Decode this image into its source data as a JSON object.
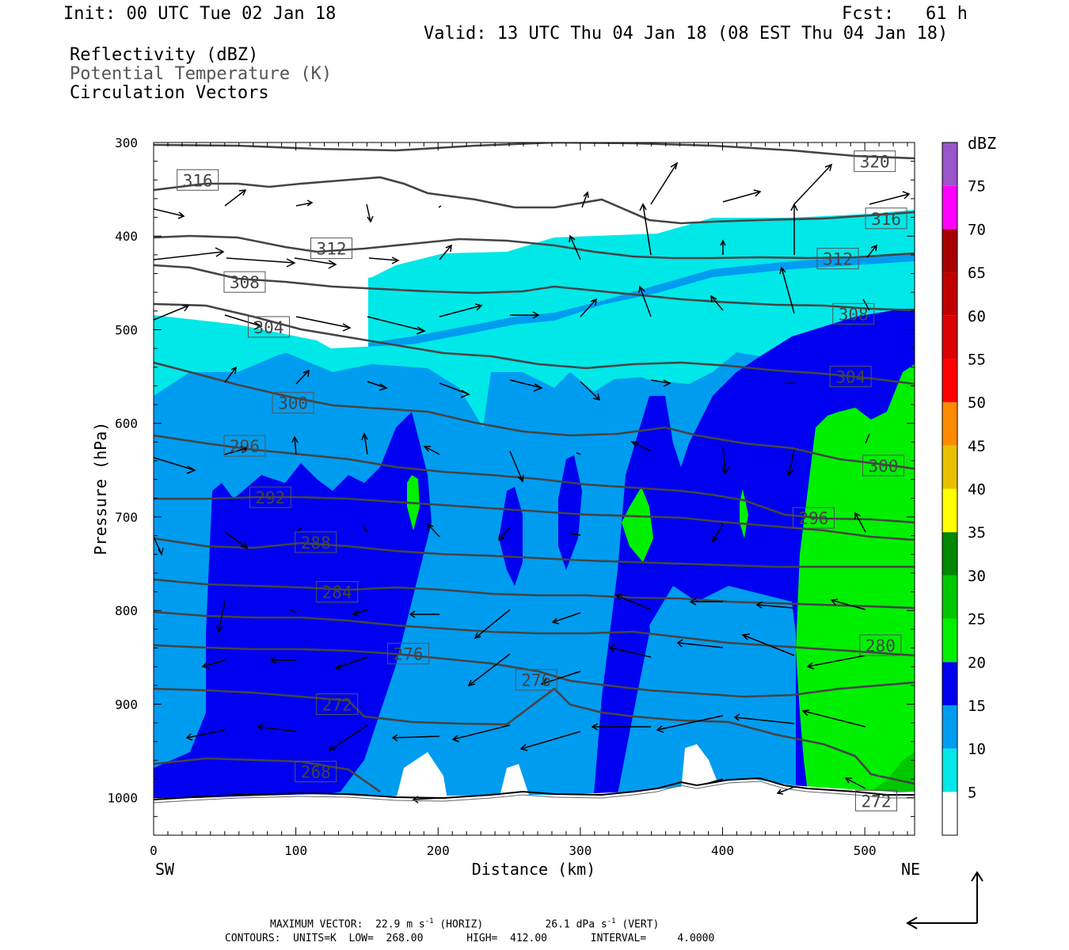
{
  "header": {
    "init": "Init: 00 UTC Tue 02 Jan 18",
    "fcst": "Fcst:   61 h",
    "valid": "Valid: 13 UTC Thu 04 Jan 18 (08 EST Thu 04 Jan 18)",
    "fields": [
      "Reflectivity (dBZ)",
      "Potential Temperature (K)",
      "Circulation Vectors"
    ]
  },
  "footer": {
    "max_vector_prefix": "MAXIMUM VECTOR:",
    "max_vector_horiz_value": "22.9 m s",
    "max_vector_horiz_units": "(HORIZ)",
    "max_vector_vert_value": "26.1 dPa s",
    "max_vector_vert_units": "(VERT)",
    "exponent": "-1",
    "contours": "CONTOURS:  UNITS=K  LOW=  268.00       HIGH=  412.00       INTERVAL=     4.0000"
  },
  "colors": {
    "c5": "#00e8e8",
    "c10": "#009cf0",
    "c15": "#0000f0",
    "c20": "#00f000",
    "c25": "#00c800",
    "c30": "#008800",
    "c35": "#ffff00",
    "c40": "#e8c000",
    "c45": "#ff8c00",
    "c50": "#ff0000",
    "c55": "#dc0000",
    "c60": "#c00000",
    "c65": "#a80000",
    "c70": "#ff00ff",
    "c75": "#9955c9",
    "contour": "#444444",
    "ground": "#000000"
  },
  "chart_data": {
    "type": "heatmap",
    "subtype": "vertical cross-section",
    "xlabel": "Distance (km)",
    "ylabel": "Pressure (hPa)",
    "xlim": [
      0,
      535
    ],
    "ylim": [
      1040,
      300
    ],
    "x_ticks": [
      0,
      100,
      200,
      300,
      400,
      500
    ],
    "y_ticks": [
      300,
      400,
      500,
      600,
      700,
      800,
      900,
      1000
    ],
    "x_end_labels": {
      "left": "SW",
      "right": "NE"
    },
    "colorbar": {
      "title": "dBZ",
      "levels": [
        5,
        10,
        15,
        20,
        25,
        30,
        35,
        40,
        45,
        50,
        55,
        60,
        65,
        70,
        75
      ],
      "labels": [
        "5",
        "10",
        "15",
        "20",
        "25",
        "30",
        "35",
        "40",
        "45",
        "50",
        "55",
        "60",
        "65",
        "70",
        "75"
      ]
    },
    "contour_labels": [
      {
        "text": "316",
        "x": 31,
        "p": 340
      },
      {
        "text": "320",
        "x": 507,
        "p": 320
      },
      {
        "text": "316",
        "x": 515,
        "p": 381
      },
      {
        "text": "312",
        "x": 125,
        "p": 413
      },
      {
        "text": "312",
        "x": 481,
        "p": 424
      },
      {
        "text": "308",
        "x": 64,
        "p": 449
      },
      {
        "text": "308",
        "x": 492,
        "p": 483
      },
      {
        "text": "304",
        "x": 81,
        "p": 497
      },
      {
        "text": "304",
        "x": 490,
        "p": 550
      },
      {
        "text": "300",
        "x": 98,
        "p": 578
      },
      {
        "text": "300",
        "x": 513,
        "p": 645
      },
      {
        "text": "296",
        "x": 64,
        "p": 624
      },
      {
        "text": "296",
        "x": 464,
        "p": 701
      },
      {
        "text": "292",
        "x": 82,
        "p": 679
      },
      {
        "text": "288",
        "x": 114,
        "p": 727
      },
      {
        "text": "284",
        "x": 129,
        "p": 780
      },
      {
        "text": "280",
        "x": 511,
        "p": 837
      },
      {
        "text": "276",
        "x": 179,
        "p": 846
      },
      {
        "text": "276",
        "x": 269,
        "p": 874
      },
      {
        "text": "272",
        "x": 129,
        "p": 900
      },
      {
        "text": "268",
        "x": 114,
        "p": 972
      },
      {
        "text": "272",
        "x": 508,
        "p": 1003
      }
    ]
  }
}
